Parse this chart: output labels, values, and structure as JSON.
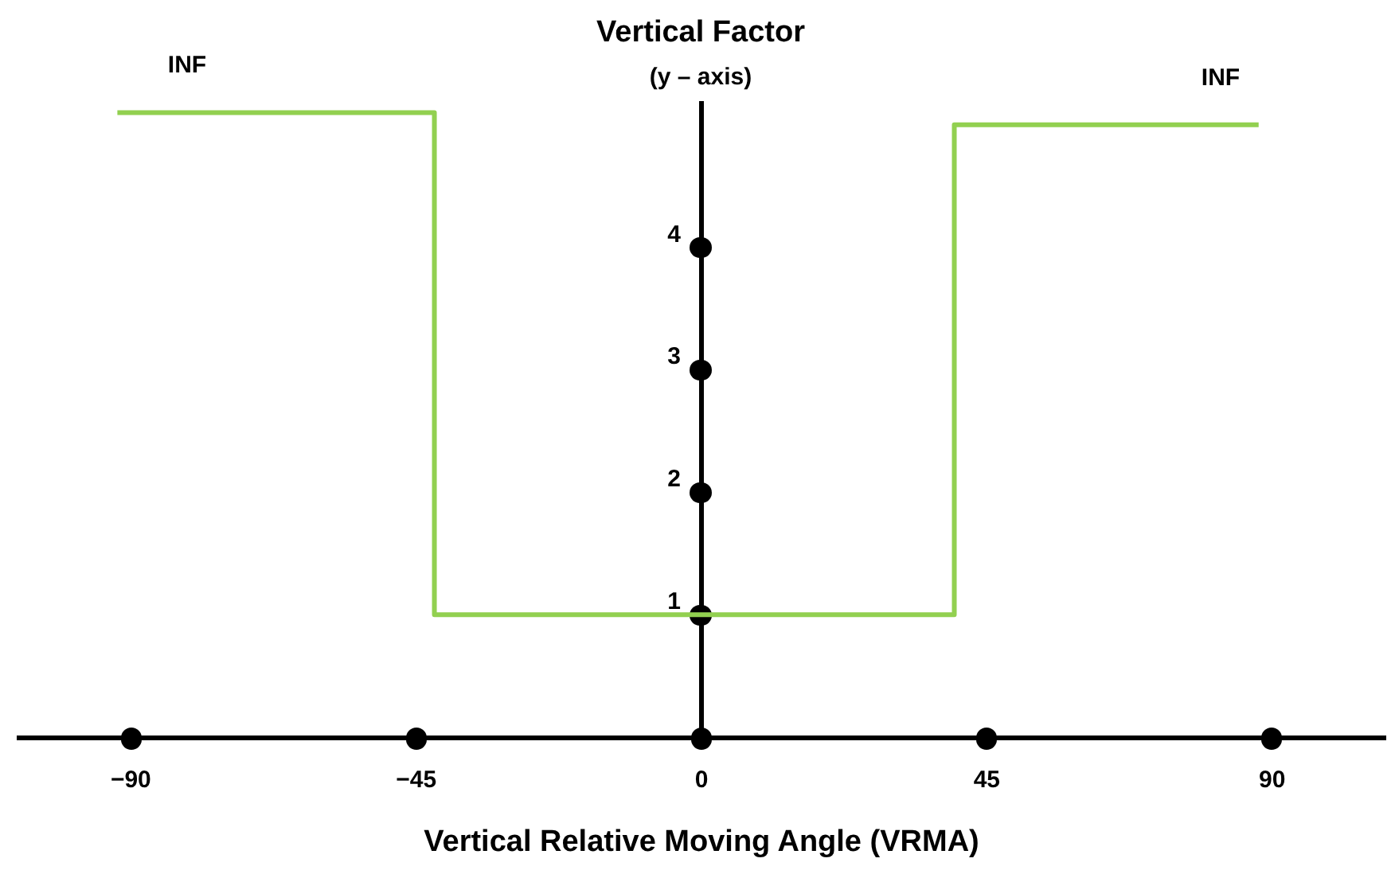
{
  "chart_data": {
    "type": "step",
    "title": "Vertical Factor",
    "subtitle": "(y – axis)",
    "xlabel": "Vertical Relative Moving Angle (VRMA)",
    "x": [
      -92,
      -42,
      40,
      88
    ],
    "series": [
      {
        "color": "#92d050",
        "values": [
          5.1,
          1,
          5.0,
          5.0
        ]
      }
    ],
    "xlim": [
      -108,
      108
    ],
    "xticks": [
      -90,
      -45,
      0,
      45,
      90
    ],
    "ylim": [
      0,
      5.2
    ],
    "yticks": [
      1,
      2,
      3,
      4
    ],
    "annotations": [
      {
        "text": "INF",
        "x": -81,
        "y": 5.1
      },
      {
        "text": "INF",
        "x": 82,
        "y": 5.0
      }
    ]
  }
}
